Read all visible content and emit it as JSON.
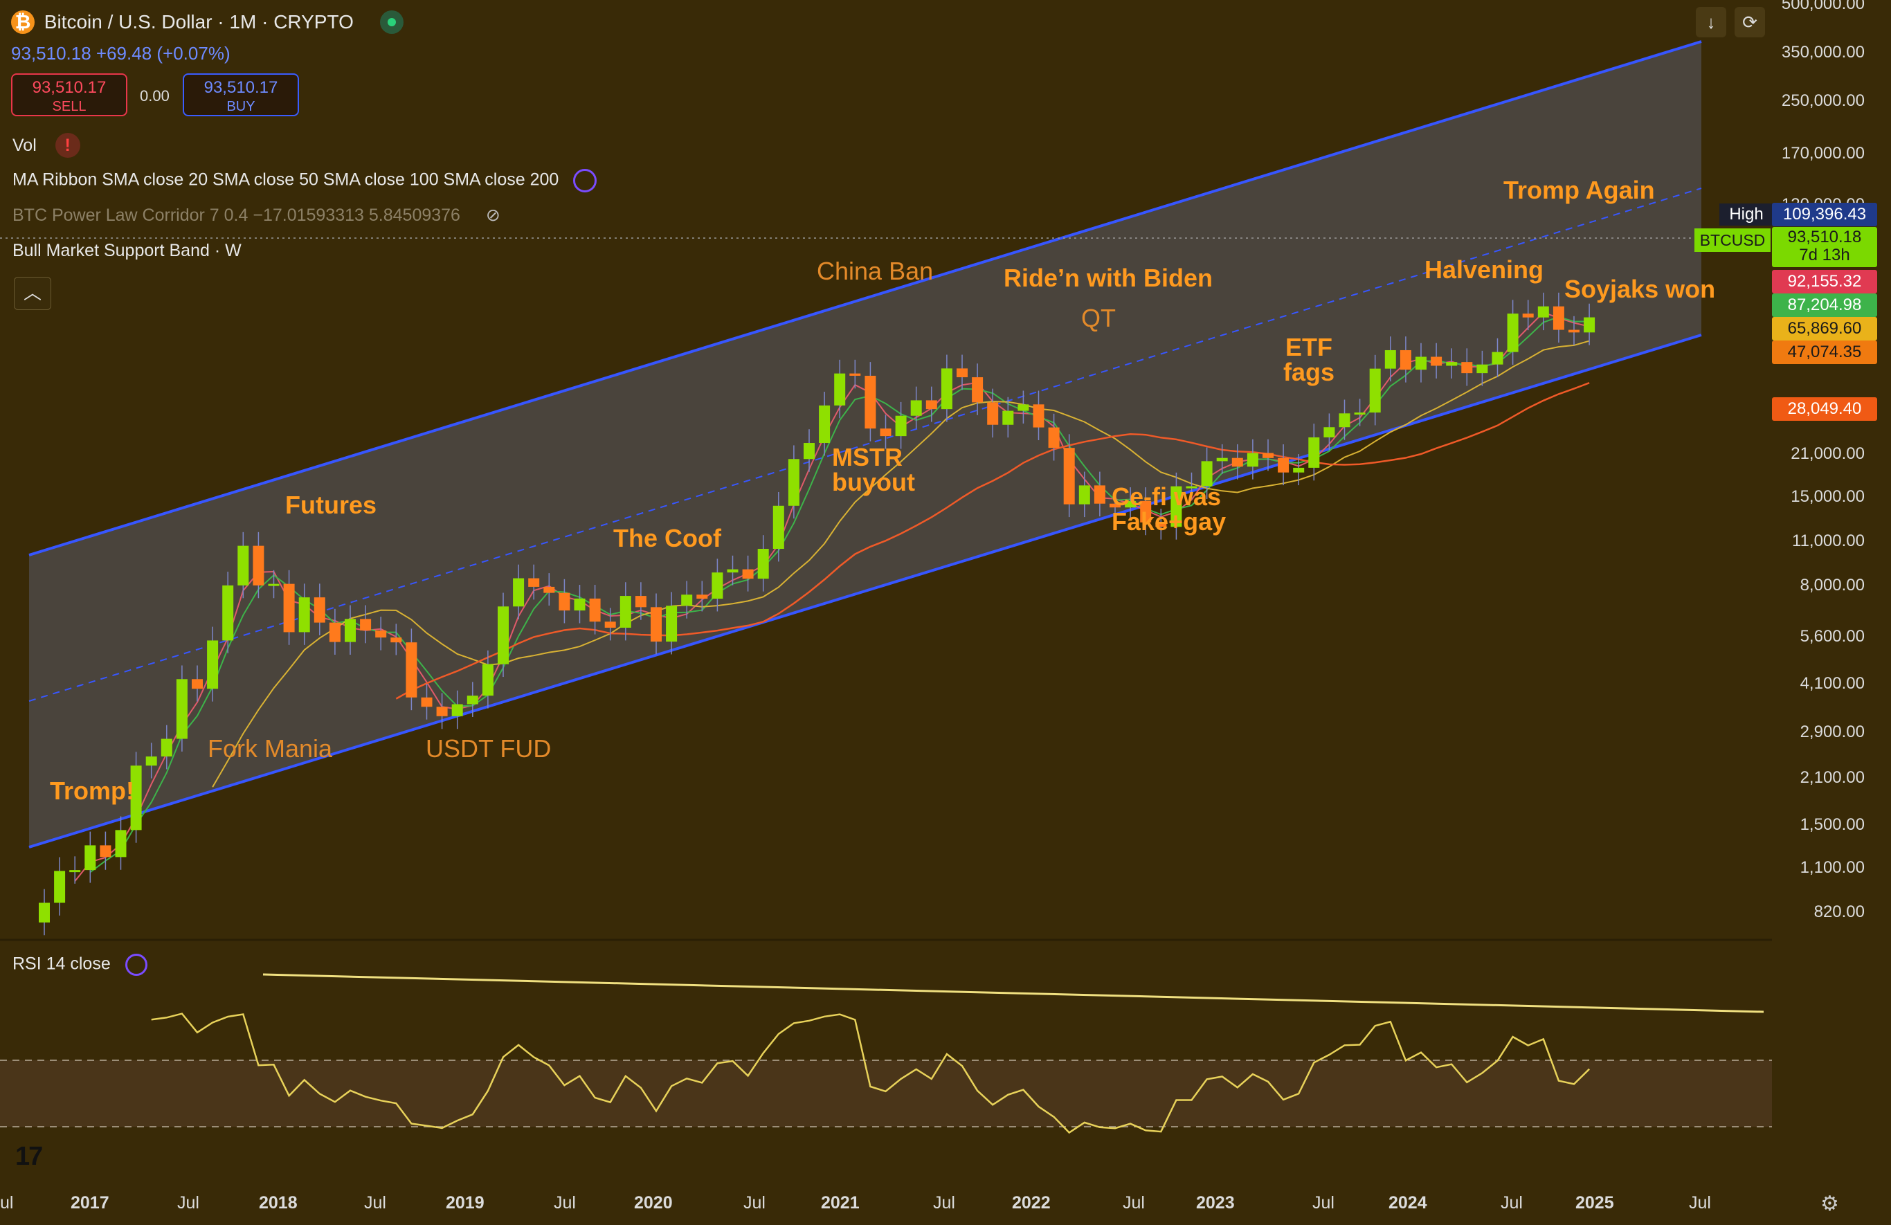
{
  "header": {
    "title": "Bitcoin / U.S. Dollar · 1M · CRYPTO",
    "price": "93,510.18",
    "change": "+69.48 (+0.07%)",
    "sell_price": "93,510.17",
    "sell_label": "SELL",
    "spread": "0.00",
    "buy_price": "93,510.17",
    "buy_label": "BUY"
  },
  "indicators": {
    "vol": "Vol",
    "ma_ribbon": "MA Ribbon SMA close 20 SMA close 50 SMA close 100 SMA close 200",
    "power_law": "BTC Power Law Corridor 7 0.4 −17.01593313 5.84509376",
    "bull_band": "Bull Market Support Band · W",
    "rsi": "RSI 14 close"
  },
  "annotations": {
    "tromp": "Tromp!",
    "fork": "Fork Mania",
    "futures": "Futures",
    "usdt": "USDT FUD",
    "coof": "The Coof",
    "mstr1": "MSTR",
    "mstr2": "buyout",
    "china": "China Ban",
    "biden": "Ride’n with Biden",
    "qt": "QT",
    "cefi1": "Ce-fi was",
    "cefi2": "Fake+gay",
    "etf1": "ETF",
    "etf2": "fags",
    "halving": "Halvening",
    "tromp_again": "Tromp Again",
    "soyjaks": "Soyjaks won"
  },
  "price_axis": {
    "ticks": [
      "500,000.00",
      "350,000.00",
      "250,000.00",
      "170,000.00",
      "120,000.00",
      "21,000.00",
      "15,000.00",
      "11,000.00",
      "8,000.00",
      "5,600.00",
      "4,100.00",
      "2,900.00",
      "2,100.00",
      "1,500.00",
      "1,100.00",
      "820.00"
    ],
    "high_label": "High",
    "high_value": "109,396.43",
    "symbol_tag": "BTCUSD",
    "last_price": "93,510.18",
    "countdown": "7d 13h",
    "ma_tags": [
      "92,155.32",
      "87,204.98",
      "65,869.60",
      "47,074.35",
      "28,049.40"
    ]
  },
  "time_axis": {
    "labels": [
      "ul",
      "2017",
      "Jul",
      "2018",
      "Jul",
      "2019",
      "Jul",
      "2020",
      "Jul",
      "2021",
      "Jul",
      "2022",
      "Jul",
      "2023",
      "Jul",
      "2024",
      "Jul",
      "2025",
      "Jul"
    ]
  },
  "colors": {
    "background": "#392a07",
    "up": "#8fe000",
    "down": "#ff7a1c",
    "channel": "#3756ff",
    "ma_yellow": "#d9b233",
    "ma_orange": "#f05a28",
    "rsi": "#e8d25a"
  },
  "icons": [
    "bitcoin-icon",
    "market-open-icon",
    "warning-icon",
    "sync-icon",
    "eye-off-icon",
    "collapse-icon",
    "download-icon",
    "fullscreen-icon",
    "tradingview-logo",
    "settings-icon"
  ],
  "chart_data": {
    "type": "candlestick",
    "title": "Bitcoin / U.S. Dollar · 1M · CRYPTO",
    "scale": "log",
    "monthly_close": [
      {
        "date": "2016-11",
        "close": 740
      },
      {
        "date": "2016-12",
        "close": 963
      },
      {
        "date": "2017-01",
        "close": 970
      },
      {
        "date": "2017-02",
        "close": 1190
      },
      {
        "date": "2017-03",
        "close": 1080
      },
      {
        "date": "2017-04",
        "close": 1350
      },
      {
        "date": "2017-05",
        "close": 2300
      },
      {
        "date": "2017-06",
        "close": 2480
      },
      {
        "date": "2017-07",
        "close": 2870
      },
      {
        "date": "2017-08",
        "close": 4700
      },
      {
        "date": "2017-09",
        "close": 4340
      },
      {
        "date": "2017-10",
        "close": 6470
      },
      {
        "date": "2017-11",
        "close": 10200
      },
      {
        "date": "2017-12",
        "close": 14150
      },
      {
        "date": "2018-01",
        "close": 10200
      },
      {
        "date": "2018-02",
        "close": 10330
      },
      {
        "date": "2018-03",
        "close": 6930
      },
      {
        "date": "2018-04",
        "close": 9240
      },
      {
        "date": "2018-05",
        "close": 7500
      },
      {
        "date": "2018-06",
        "close": 6390
      },
      {
        "date": "2018-07",
        "close": 7730
      },
      {
        "date": "2018-08",
        "close": 7030
      },
      {
        "date": "2018-09",
        "close": 6630
      },
      {
        "date": "2018-10",
        "close": 6370
      },
      {
        "date": "2018-11",
        "close": 4040
      },
      {
        "date": "2018-12",
        "close": 3740
      },
      {
        "date": "2019-01",
        "close": 3460
      },
      {
        "date": "2019-02",
        "close": 3820
      },
      {
        "date": "2019-03",
        "close": 4100
      },
      {
        "date": "2019-04",
        "close": 5320
      },
      {
        "date": "2019-05",
        "close": 8570
      },
      {
        "date": "2019-06",
        "close": 10820
      },
      {
        "date": "2019-07",
        "close": 10080
      },
      {
        "date": "2019-08",
        "close": 9590
      },
      {
        "date": "2019-09",
        "close": 8290
      },
      {
        "date": "2019-10",
        "close": 9150
      },
      {
        "date": "2019-11",
        "close": 7560
      },
      {
        "date": "2019-12",
        "close": 7190
      },
      {
        "date": "2020-01",
        "close": 9350
      },
      {
        "date": "2020-02",
        "close": 8520
      },
      {
        "date": "2020-03",
        "close": 6410
      },
      {
        "date": "2020-04",
        "close": 8620
      },
      {
        "date": "2020-05",
        "close": 9450
      },
      {
        "date": "2020-06",
        "close": 9140
      },
      {
        "date": "2020-07",
        "close": 11350
      },
      {
        "date": "2020-08",
        "close": 11650
      },
      {
        "date": "2020-09",
        "close": 10780
      },
      {
        "date": "2020-10",
        "close": 13800
      },
      {
        "date": "2020-11",
        "close": 19700
      },
      {
        "date": "2020-12",
        "close": 28990
      },
      {
        "date": "2021-01",
        "close": 33110
      },
      {
        "date": "2021-02",
        "close": 45140
      },
      {
        "date": "2021-03",
        "close": 58800
      },
      {
        "date": "2021-04",
        "close": 57700
      },
      {
        "date": "2021-05",
        "close": 37300
      },
      {
        "date": "2021-06",
        "close": 35040
      },
      {
        "date": "2021-07",
        "close": 41460
      },
      {
        "date": "2021-08",
        "close": 47100
      },
      {
        "date": "2021-09",
        "close": 43790
      },
      {
        "date": "2021-10",
        "close": 61300
      },
      {
        "date": "2021-11",
        "close": 57000
      },
      {
        "date": "2021-12",
        "close": 46300
      },
      {
        "date": "2022-01",
        "close": 38480
      },
      {
        "date": "2022-02",
        "close": 43190
      },
      {
        "date": "2022-03",
        "close": 45540
      },
      {
        "date": "2022-04",
        "close": 37640
      },
      {
        "date": "2022-05",
        "close": 31790
      },
      {
        "date": "2022-06",
        "close": 19940
      },
      {
        "date": "2022-07",
        "close": 23310
      },
      {
        "date": "2022-08",
        "close": 20050
      },
      {
        "date": "2022-09",
        "close": 19430
      },
      {
        "date": "2022-10",
        "close": 20490
      },
      {
        "date": "2022-11",
        "close": 17170
      },
      {
        "date": "2022-12",
        "close": 16550
      },
      {
        "date": "2023-01",
        "close": 23140
      },
      {
        "date": "2023-02",
        "close": 23150
      },
      {
        "date": "2023-03",
        "close": 28480
      },
      {
        "date": "2023-04",
        "close": 29250
      },
      {
        "date": "2023-05",
        "close": 27220
      },
      {
        "date": "2023-06",
        "close": 30470
      },
      {
        "date": "2023-07",
        "close": 29230
      },
      {
        "date": "2023-08",
        "close": 25940
      },
      {
        "date": "2023-09",
        "close": 26970
      },
      {
        "date": "2023-10",
        "close": 34670
      },
      {
        "date": "2023-11",
        "close": 37720
      },
      {
        "date": "2023-12",
        "close": 42280
      },
      {
        "date": "2024-01",
        "close": 42580
      },
      {
        "date": "2024-02",
        "close": 61200
      },
      {
        "date": "2024-03",
        "close": 71290
      },
      {
        "date": "2024-04",
        "close": 60670
      },
      {
        "date": "2024-05",
        "close": 67500
      },
      {
        "date": "2024-06",
        "close": 62680
      },
      {
        "date": "2024-07",
        "close": 64620
      },
      {
        "date": "2024-08",
        "close": 58970
      },
      {
        "date": "2024-09",
        "close": 63330
      },
      {
        "date": "2024-10",
        "close": 70220
      },
      {
        "date": "2024-11",
        "close": 96450
      },
      {
        "date": "2024-12",
        "close": 93430
      },
      {
        "date": "2025-01",
        "close": 102400
      },
      {
        "date": "2025-02",
        "close": 84350
      },
      {
        "date": "2025-03",
        "close": 82550
      },
      {
        "date": "2025-04",
        "close": 93510
      }
    ]
  }
}
